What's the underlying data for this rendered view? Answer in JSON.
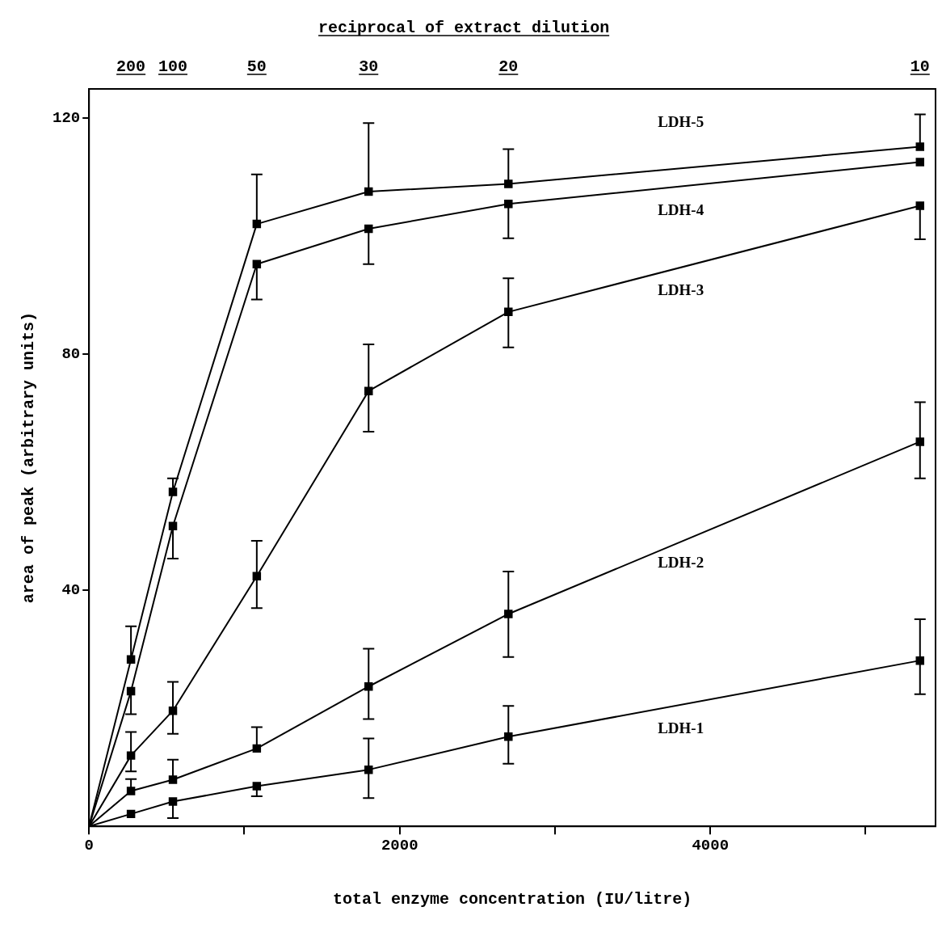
{
  "chart_data": {
    "type": "line",
    "xlabel": "total enzyme concentration (IU/litre)",
    "ylabel": "area of peak (arbitrary units)",
    "annotations": [
      "reciprocal of extract dilution",
      "200",
      "100",
      "50",
      "30",
      "20",
      "10"
    ],
    "x": [
      0,
      270,
      540,
      1080,
      1800,
      2700,
      5350
    ],
    "xlim": [
      0,
      5450
    ],
    "xticks": [
      0,
      {
        "value": 1000,
        "label": null
      },
      2000,
      {
        "value": 3000,
        "label": null
      },
      4000,
      {
        "value": 5000,
        "label": null
      }
    ],
    "ylim": [
      0,
      125
    ],
    "yticks": [
      40,
      80,
      120
    ],
    "marker": "square",
    "line_style": "solid",
    "legend": false,
    "grid": false,
    "series": [
      {
        "name": "LDH-5",
        "color": "#000000",
        "values": [
          0,
          28.3,
          56.7,
          102.1,
          107.6,
          108.9,
          115.2
        ],
        "errors": [
          null,
          [
            28.3,
            33.9
          ],
          [
            56.7,
            59.0
          ],
          [
            102.1,
            110.5
          ],
          [
            107.6,
            119.2
          ],
          [
            108.9,
            114.8
          ],
          [
            115.2,
            120.7
          ]
        ]
      },
      {
        "name": "LDH-4",
        "color": "#000000",
        "values": [
          0,
          22.9,
          50.9,
          95.3,
          101.3,
          105.5,
          112.6
        ],
        "errors": [
          null,
          [
            19.0,
            22.9
          ],
          [
            45.4,
            50.9
          ],
          [
            89.3,
            95.3
          ],
          [
            95.3,
            101.3
          ],
          [
            99.7,
            105.5
          ],
          null
        ]
      },
      {
        "name": "LDH-3",
        "color": "#000000",
        "values": [
          0,
          12.0,
          19.6,
          42.4,
          73.8,
          87.2,
          105.2
        ],
        "errors": [
          null,
          [
            9.3,
            16.0
          ],
          [
            15.7,
            24.5
          ],
          [
            37.0,
            48.4
          ],
          [
            66.9,
            81.7
          ],
          [
            81.2,
            92.9
          ],
          [
            99.5,
            105.2
          ]
        ]
      },
      {
        "name": "LDH-2",
        "color": "#000000",
        "values": [
          0,
          6.0,
          7.9,
          13.2,
          23.7,
          36.0,
          65.2
        ],
        "errors": [
          null,
          [
            6.0,
            8.0
          ],
          [
            7.9,
            11.3
          ],
          [
            13.2,
            16.8
          ],
          [
            18.2,
            30.1
          ],
          [
            28.7,
            43.2
          ],
          [
            59.0,
            71.9
          ]
        ]
      },
      {
        "name": "LDH-1",
        "color": "#000000",
        "values": [
          0,
          2.1,
          4.2,
          6.8,
          9.6,
          15.2,
          28.1
        ],
        "errors": [
          null,
          null,
          [
            1.4,
            4.2
          ],
          [
            5.1,
            6.8
          ],
          [
            4.8,
            14.9
          ],
          [
            10.6,
            20.4
          ],
          [
            22.4,
            35.1
          ]
        ]
      }
    ]
  }
}
